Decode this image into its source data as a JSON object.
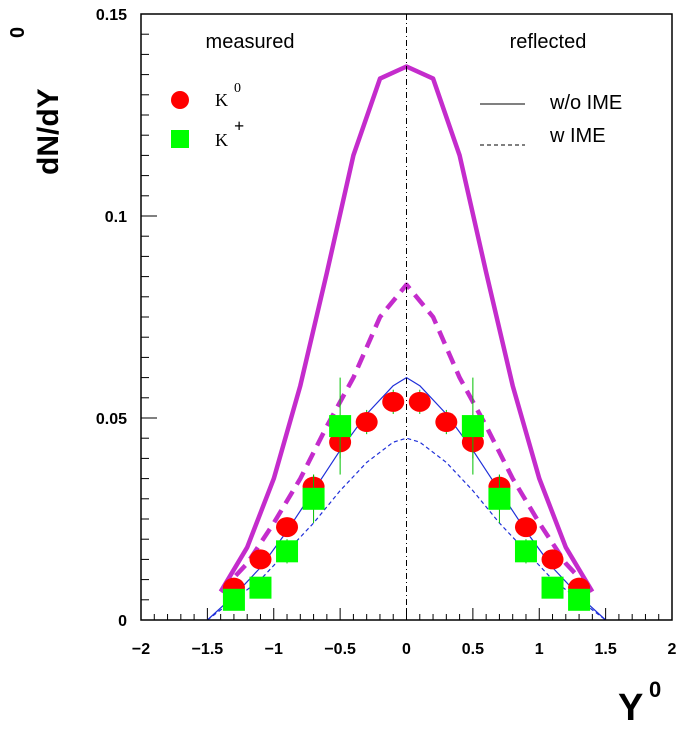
{
  "chart_data": {
    "type": "scatter",
    "xlabel": "Y",
    "xlabel_sup": "0",
    "ylabel": "dN/dY",
    "ylabel_sup": "0",
    "xlim": [
      -2,
      2
    ],
    "ylim": [
      0,
      0.15
    ],
    "x_ticks": [
      -2,
      -1.5,
      -1,
      -0.5,
      0,
      0.5,
      1,
      1.5,
      2
    ],
    "x_tick_labels": [
      "−2",
      "−1.5",
      "−1",
      "−0.5",
      "0",
      "0.5",
      "1",
      "1.5",
      "2"
    ],
    "y_ticks": [
      0,
      0.05,
      0.1,
      0.15
    ],
    "y_tick_labels": [
      "0",
      "0.05",
      "0.1",
      "0.15"
    ],
    "annotations": {
      "left": "measured",
      "right": "reflected"
    },
    "legend": {
      "markers": [
        {
          "name": "K",
          "sup": "0",
          "marker": "circle",
          "color": "#ff0000"
        },
        {
          "name": "K",
          "sup": "+",
          "marker": "square",
          "color": "#00ff00"
        }
      ],
      "lines": [
        {
          "name": "w/o IME",
          "style": "solid"
        },
        {
          "name": "w IME",
          "style": "dashed"
        }
      ]
    },
    "colors": {
      "magenta": "#c42ccc",
      "blue": "#1f2fd9",
      "red": "#ff0000",
      "green": "#00ff00"
    },
    "series": [
      {
        "name": "K0",
        "type": "scatter",
        "marker": "circle",
        "color": "#ff0000",
        "x": [
          -1.3,
          -1.1,
          -0.9,
          -0.7,
          -0.5,
          -0.3,
          -0.1,
          0.1,
          0.3,
          0.5,
          0.7,
          0.9,
          1.1,
          1.3
        ],
        "y": [
          0.008,
          0.015,
          0.023,
          0.033,
          0.044,
          0.049,
          0.054,
          0.054,
          0.049,
          0.044,
          0.033,
          0.023,
          0.015,
          0.008
        ],
        "err": [
          0.002,
          0.002,
          0.002,
          0.003,
          0.004,
          0.003,
          0.003,
          0.003,
          0.003,
          0.004,
          0.003,
          0.002,
          0.002,
          0.002
        ]
      },
      {
        "name": "K+",
        "type": "scatter",
        "marker": "square",
        "color": "#00ff00",
        "x": [
          -1.3,
          -1.1,
          -0.9,
          -0.7,
          -0.5,
          0.5,
          0.7,
          0.9,
          1.1,
          1.3
        ],
        "y": [
          0.005,
          0.008,
          0.017,
          0.03,
          0.048,
          0.048,
          0.03,
          0.017,
          0.008,
          0.005
        ],
        "err": [
          0.002,
          0.002,
          0.003,
          0.006,
          0.012,
          0.012,
          0.006,
          0.003,
          0.002,
          0.002
        ]
      },
      {
        "name": "magenta w/o IME",
        "type": "line",
        "style": "solid",
        "color": "#c42ccc",
        "width": "thick",
        "x": [
          -1.4,
          -1.2,
          -1.0,
          -0.8,
          -0.6,
          -0.4,
          -0.2,
          0,
          0.2,
          0.4,
          0.6,
          0.8,
          1.0,
          1.2,
          1.4
        ],
        "y": [
          0.007,
          0.018,
          0.035,
          0.058,
          0.086,
          0.115,
          0.134,
          0.137,
          0.134,
          0.115,
          0.086,
          0.058,
          0.035,
          0.018,
          0.007
        ]
      },
      {
        "name": "magenta w IME",
        "type": "line",
        "style": "dashed",
        "color": "#c42ccc",
        "width": "thick",
        "x": [
          -1.4,
          -1.2,
          -1.0,
          -0.8,
          -0.6,
          -0.4,
          -0.2,
          0,
          0.2,
          0.4,
          0.6,
          0.8,
          1.0,
          1.2,
          1.4
        ],
        "y": [
          0.007,
          0.014,
          0.024,
          0.035,
          0.048,
          0.06,
          0.075,
          0.083,
          0.075,
          0.06,
          0.048,
          0.035,
          0.024,
          0.014,
          0.007
        ]
      },
      {
        "name": "blue w/o IME",
        "type": "line",
        "style": "solid",
        "color": "#1f2fd9",
        "width": "thin",
        "x": [
          -1.5,
          -1.3,
          -1.1,
          -0.9,
          -0.7,
          -0.5,
          -0.3,
          -0.1,
          0,
          0.1,
          0.3,
          0.5,
          0.7,
          0.9,
          1.1,
          1.3,
          1.5
        ],
        "y": [
          0.0,
          0.006,
          0.013,
          0.022,
          0.032,
          0.042,
          0.051,
          0.058,
          0.06,
          0.058,
          0.051,
          0.042,
          0.032,
          0.022,
          0.013,
          0.006,
          0.0
        ]
      },
      {
        "name": "blue w IME",
        "type": "line",
        "style": "dashed",
        "color": "#1f2fd9",
        "width": "thin",
        "x": [
          -1.5,
          -1.3,
          -1.1,
          -0.9,
          -0.7,
          -0.5,
          -0.3,
          -0.1,
          0,
          0.1,
          0.3,
          0.5,
          0.7,
          0.9,
          1.1,
          1.3,
          1.5
        ],
        "y": [
          0.0,
          0.005,
          0.01,
          0.017,
          0.024,
          0.032,
          0.039,
          0.044,
          0.045,
          0.044,
          0.039,
          0.032,
          0.024,
          0.017,
          0.01,
          0.005,
          0.0
        ]
      }
    ]
  }
}
